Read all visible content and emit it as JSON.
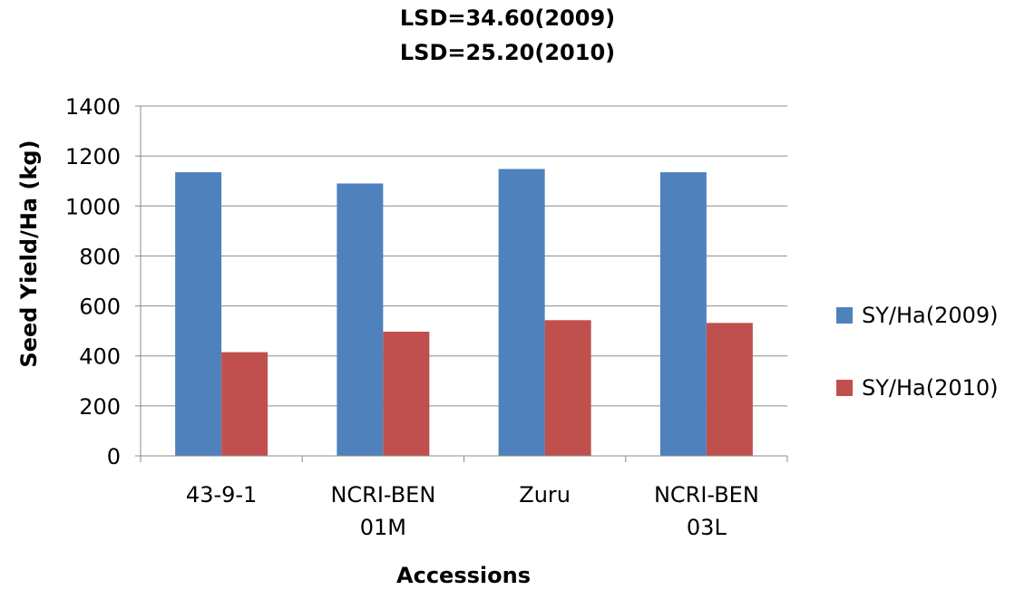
{
  "chart_data": {
    "type": "bar",
    "title_lines": [
      "LSD=34.60(2009)",
      "LSD=25.20(2010)"
    ],
    "xlabel": "Accessions",
    "ylabel": "Seed Yield/Ha (kg)",
    "categories": [
      [
        "43-9-1"
      ],
      [
        "NCRI-BEN",
        "01M"
      ],
      [
        "Zuru"
      ],
      [
        "NCRI-BEN",
        "03L"
      ]
    ],
    "series": [
      {
        "name": "SY/Ha(2009)",
        "color": "#4f81bd",
        "values": [
          1135,
          1090,
          1148,
          1135
        ]
      },
      {
        "name": "SY/Ha(2010)",
        "color": "#c0504d",
        "values": [
          415,
          497,
          543,
          532
        ]
      }
    ],
    "ylim": [
      0,
      1400
    ],
    "yticks": [
      0,
      200,
      400,
      600,
      800,
      1000,
      1200,
      1400
    ],
    "grid": true,
    "legend_position": "right"
  }
}
